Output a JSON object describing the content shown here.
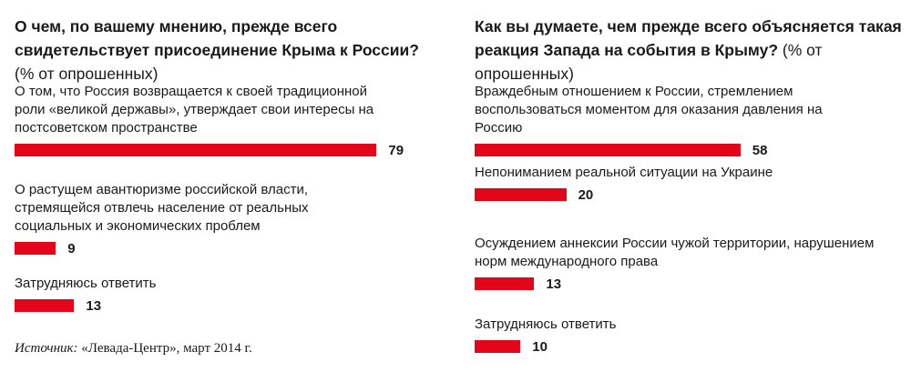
{
  "accent_color": "#e3061b",
  "chart_data": [
    {
      "type": "bar",
      "orientation": "horizontal",
      "title": "О чем, по вашему мнению, прежде всего свидетельствует присоединение Крыма к России?",
      "title_suffix": "(% от опрошенных)",
      "categories": [
        "О том, что Россия возвращается к своей традиционной роли «великой державы», утверждает свои интересы на постсоветском пространстве",
        "О растущем авантюризме российской власти, стремящейся отвлечь население от реальных социальных и экономических проблем",
        "Затрудняюсь ответить"
      ],
      "values": [
        79,
        9,
        13
      ]
    },
    {
      "type": "bar",
      "orientation": "horizontal",
      "title": "Как вы думаете, чем прежде всего объясняется такая реакция Запада на события в Крыму?",
      "title_suffix": "(% от опрошенных)",
      "categories": [
        "Враждебным отношением к России, стремлением воспользоваться моментом для оказания давления на Россию",
        "Непониманием реальной ситуации на Украине",
        "Осуждением аннексии России чужой территории, нарушением норм международного права",
        "Затрудняюсь ответить"
      ],
      "values": [
        58,
        20,
        13,
        10
      ]
    }
  ],
  "source": {
    "label": "Источник:",
    "text": "«Левада-Центр», март 2014 г."
  }
}
